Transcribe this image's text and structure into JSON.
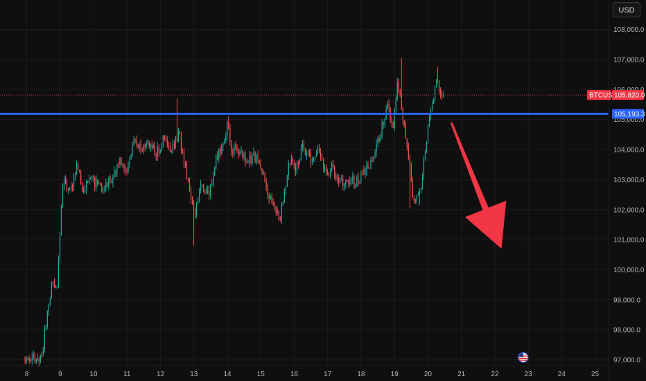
{
  "toolbar": {
    "currency_label": "USD"
  },
  "colors": {
    "background": "#0f0f0f",
    "grid": "#1c1c1c",
    "up": "#26a69a",
    "down": "#ef5350",
    "support_line": "#2962ff",
    "arrow": "#f23645",
    "axis_text": "#b2b5be"
  },
  "price_tags": {
    "symbol": "BTCUSD",
    "last_price_label": "105,820.0",
    "last_price": 105820,
    "level_label": "105,193.3",
    "level": 105193.3
  },
  "chart_data": {
    "type": "candlestick",
    "symbol": "BTCUSD",
    "ylim": [
      96850,
      108800
    ],
    "y_ticks": [
      {
        "value": 97000,
        "label": "97,000.0"
      },
      {
        "value": 98000,
        "label": "98,000.0"
      },
      {
        "value": 99000,
        "label": "99,000.0"
      },
      {
        "value": 100000,
        "label": "100,000.0"
      },
      {
        "value": 101000,
        "label": "101,000.0"
      },
      {
        "value": 102000,
        "label": "102,000.0"
      },
      {
        "value": 103000,
        "label": "103,000.0"
      },
      {
        "value": 104000,
        "label": "104,000.0"
      },
      {
        "value": 105000,
        "label": "105,000.0"
      },
      {
        "value": 106000,
        "label": "106,000.0"
      },
      {
        "value": 107000,
        "label": "107,000.0"
      },
      {
        "value": 108000,
        "label": "108,000.0"
      }
    ],
    "x_ticks": [
      "8",
      "9",
      "10",
      "11",
      "12",
      "13",
      "14",
      "15",
      "16",
      "17",
      "18",
      "19",
      "20",
      "21",
      "22",
      "23",
      "24",
      "25"
    ],
    "xlim_days": [
      7.2,
      25.9
    ],
    "anchors": [
      [
        7.95,
        97100
      ],
      [
        8.1,
        97000
      ],
      [
        8.3,
        97050
      ],
      [
        8.45,
        97150
      ],
      [
        8.6,
        98400
      ],
      [
        8.7,
        99200
      ],
      [
        8.8,
        99700
      ],
      [
        8.9,
        99400
      ],
      [
        9.0,
        101200
      ],
      [
        9.05,
        102300
      ],
      [
        9.1,
        102900
      ],
      [
        9.3,
        102700
      ],
      [
        9.5,
        103400
      ],
      [
        9.7,
        102600
      ],
      [
        9.9,
        103100
      ],
      [
        10.2,
        102700
      ],
      [
        10.5,
        103000
      ],
      [
        10.8,
        103600
      ],
      [
        11.0,
        103200
      ],
      [
        11.2,
        104400
      ],
      [
        11.35,
        104000
      ],
      [
        11.6,
        104300
      ],
      [
        11.9,
        103900
      ],
      [
        12.1,
        104400
      ],
      [
        12.3,
        103900
      ],
      [
        12.55,
        104500
      ],
      [
        12.75,
        103400
      ],
      [
        12.9,
        102500
      ],
      [
        13.05,
        101900
      ],
      [
        13.2,
        102900
      ],
      [
        13.45,
        102500
      ],
      [
        13.65,
        103600
      ],
      [
        13.85,
        104200
      ],
      [
        14.0,
        104800
      ],
      [
        14.1,
        104100
      ],
      [
        14.3,
        103900
      ],
      [
        14.6,
        103600
      ],
      [
        14.8,
        103800
      ],
      [
        15.0,
        103400
      ],
      [
        15.2,
        102700
      ],
      [
        15.4,
        102000
      ],
      [
        15.6,
        101800
      ],
      [
        15.85,
        103700
      ],
      [
        16.05,
        103300
      ],
      [
        16.25,
        104100
      ],
      [
        16.5,
        103700
      ],
      [
        16.75,
        104000
      ],
      [
        16.95,
        103200
      ],
      [
        17.15,
        103400
      ],
      [
        17.3,
        102900
      ],
      [
        17.55,
        103000
      ],
      [
        17.8,
        102900
      ],
      [
        18.05,
        103200
      ],
      [
        18.3,
        103500
      ],
      [
        18.5,
        104200
      ],
      [
        18.8,
        105600
      ],
      [
        18.95,
        104700
      ],
      [
        19.1,
        106300
      ],
      [
        19.25,
        105100
      ],
      [
        19.45,
        103700
      ],
      [
        19.55,
        102300
      ],
      [
        19.7,
        102600
      ],
      [
        19.8,
        102700
      ],
      [
        19.95,
        104300
      ],
      [
        20.05,
        105200
      ],
      [
        20.15,
        105500
      ],
      [
        20.25,
        106300
      ],
      [
        20.35,
        105900
      ],
      [
        20.5,
        105750
      ]
    ],
    "candle_step_days": 0.0417,
    "candle_seed": 20614,
    "events": [
      {
        "day": 12.5,
        "high": 105700
      },
      {
        "day": 13.0,
        "low": 100800
      },
      {
        "day": 19.2,
        "high": 107050
      },
      {
        "day": 19.45,
        "low": 102050
      },
      {
        "day": 19.75,
        "low": 102150
      },
      {
        "day": 20.3,
        "high": 106750
      }
    ],
    "horizontal_level": 105193.3,
    "last_price": 105820,
    "arrow": {
      "from": [
        20.7,
        104900
      ],
      "to": [
        22.2,
        100700
      ]
    },
    "event_marker_day": 22.85
  }
}
